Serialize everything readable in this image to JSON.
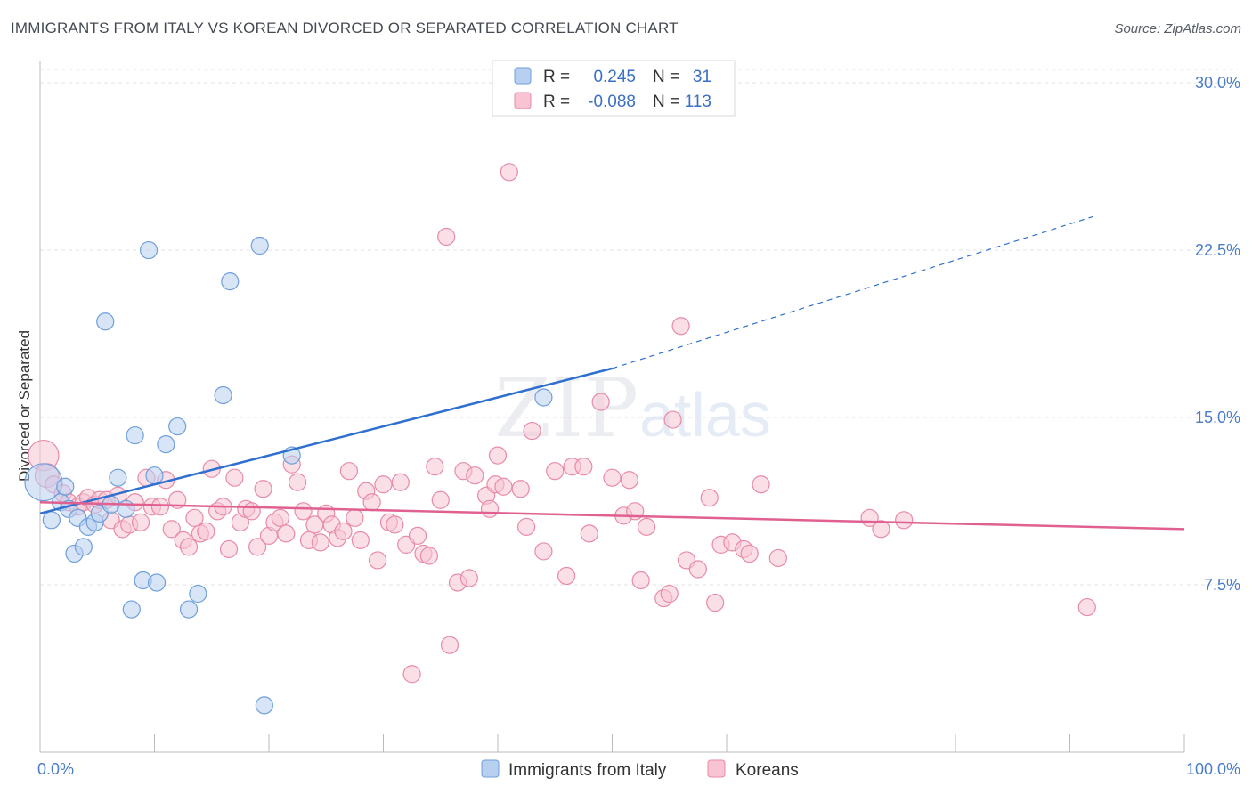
{
  "title": "IMMIGRANTS FROM ITALY VS KOREAN DIVORCED OR SEPARATED CORRELATION CHART",
  "source": "Source: ZipAtlas.com",
  "watermark": {
    "zip": "ZIP",
    "atlas": "atlas"
  },
  "colors": {
    "italy_fill": "#b8d0f0",
    "italy_stroke": "#6e9fdc",
    "italy_line": "#2e6fd0",
    "korean_fill": "#f8c4d4",
    "korean_stroke": "#e88aa8",
    "korean_line": "#e06090",
    "grid": "#e3e3e3",
    "tick_text": "#4a7cc9"
  },
  "legend": {
    "rows": [
      {
        "r_label": "R =",
        "r_value": "0.245",
        "n_label": "N =",
        "n_value": "31"
      },
      {
        "r_label": "R =",
        "r_value": "-0.088",
        "n_label": "N =",
        "n_value": "113"
      }
    ]
  },
  "chart_data": {
    "type": "scatter",
    "title": "IMMIGRANTS FROM ITALY VS KOREAN DIVORCED OR SEPARATED CORRELATION CHART",
    "xlabel": "",
    "ylabel": "Divorced or Separated",
    "xlim": [
      0,
      100
    ],
    "ylim": [
      0,
      31
    ],
    "x_tick_labels": [
      "0.0%",
      "100.0%"
    ],
    "y_ticks": [
      7.5,
      15.0,
      22.5,
      30.0
    ],
    "y_tick_labels": [
      "7.5%",
      "15.0%",
      "22.5%",
      "30.0%"
    ],
    "grid": true,
    "legend_position": "bottom",
    "series": [
      {
        "name": "Immigrants from Italy",
        "R": 0.245,
        "N": 31,
        "trend": {
          "x0": 0,
          "y0": 10.7,
          "x1": 50,
          "y1": 17.2,
          "dashed_to_x": 92,
          "dashed_to_y": 24.0
        },
        "points": [
          [
            0.3,
            12.1,
            2.2
          ],
          [
            1.0,
            10.4,
            1
          ],
          [
            1.8,
            11.2,
            1
          ],
          [
            2.2,
            11.9,
            1
          ],
          [
            2.5,
            10.9,
            1
          ],
          [
            3.0,
            8.9,
            1
          ],
          [
            3.3,
            10.5,
            1
          ],
          [
            3.8,
            9.2,
            1
          ],
          [
            4.2,
            10.1,
            1
          ],
          [
            4.8,
            10.3,
            1
          ],
          [
            5.2,
            10.7,
            1
          ],
          [
            5.7,
            19.3,
            1
          ],
          [
            6.2,
            11.1,
            1
          ],
          [
            6.8,
            12.3,
            1
          ],
          [
            7.5,
            10.9,
            1
          ],
          [
            8.0,
            6.4,
            1
          ],
          [
            8.3,
            14.2,
            1
          ],
          [
            9.0,
            7.7,
            1
          ],
          [
            9.5,
            22.5,
            1
          ],
          [
            10.0,
            12.4,
            1
          ],
          [
            10.2,
            7.6,
            1
          ],
          [
            11.0,
            13.8,
            1
          ],
          [
            12.0,
            14.6,
            1
          ],
          [
            13.0,
            6.4,
            1
          ],
          [
            13.8,
            7.1,
            1
          ],
          [
            16.0,
            16.0,
            1
          ],
          [
            16.6,
            21.1,
            1
          ],
          [
            19.2,
            22.7,
            1
          ],
          [
            19.6,
            2.1,
            1
          ],
          [
            22.0,
            13.3,
            1
          ],
          [
            44.0,
            15.9,
            1
          ]
        ]
      },
      {
        "name": "Koreans",
        "R": -0.088,
        "N": 113,
        "trend": {
          "x0": 0,
          "y0": 11.2,
          "x1": 100,
          "y1": 10.0
        },
        "points": [
          [
            0.3,
            13.3,
            1.8
          ],
          [
            0.6,
            12.4,
            1.4
          ],
          [
            1.2,
            12.0,
            1
          ],
          [
            2.0,
            11.6,
            1
          ],
          [
            2.5,
            11.2,
            1
          ],
          [
            3.3,
            11.0,
            1
          ],
          [
            3.8,
            11.2,
            1
          ],
          [
            4.2,
            11.4,
            1
          ],
          [
            4.8,
            11.1,
            1
          ],
          [
            5.2,
            11.3,
            1
          ],
          [
            5.8,
            11.3,
            1
          ],
          [
            6.2,
            10.4,
            1
          ],
          [
            6.8,
            11.5,
            1
          ],
          [
            7.2,
            10.0,
            1
          ],
          [
            7.8,
            10.2,
            1
          ],
          [
            8.3,
            11.2,
            1
          ],
          [
            8.8,
            10.3,
            1
          ],
          [
            9.3,
            12.3,
            1
          ],
          [
            9.8,
            11.0,
            1
          ],
          [
            10.5,
            11.0,
            1
          ],
          [
            11.0,
            12.2,
            1
          ],
          [
            11.5,
            10.0,
            1
          ],
          [
            12.0,
            11.3,
            1
          ],
          [
            12.5,
            9.5,
            1
          ],
          [
            13.0,
            9.2,
            1
          ],
          [
            13.5,
            10.5,
            1
          ],
          [
            14.0,
            9.8,
            1
          ],
          [
            14.5,
            9.9,
            1
          ],
          [
            15.0,
            12.7,
            1
          ],
          [
            15.5,
            10.8,
            1
          ],
          [
            16.0,
            11.0,
            1
          ],
          [
            16.5,
            9.1,
            1
          ],
          [
            17.0,
            12.3,
            1
          ],
          [
            17.5,
            10.3,
            1
          ],
          [
            18.0,
            10.9,
            1
          ],
          [
            18.5,
            10.8,
            1
          ],
          [
            19.0,
            9.2,
            1
          ],
          [
            19.5,
            11.8,
            1
          ],
          [
            20.0,
            9.7,
            1
          ],
          [
            20.5,
            10.3,
            1
          ],
          [
            21.0,
            10.5,
            1
          ],
          [
            21.5,
            9.8,
            1
          ],
          [
            22.0,
            12.9,
            1
          ],
          [
            22.5,
            12.1,
            1
          ],
          [
            23.0,
            10.8,
            1
          ],
          [
            23.5,
            9.5,
            1
          ],
          [
            24.0,
            10.2,
            1
          ],
          [
            24.5,
            9.4,
            1
          ],
          [
            25.0,
            10.7,
            1
          ],
          [
            25.5,
            10.2,
            1
          ],
          [
            26.0,
            9.6,
            1
          ],
          [
            26.5,
            9.9,
            1
          ],
          [
            27.0,
            12.6,
            1
          ],
          [
            27.5,
            10.5,
            1
          ],
          [
            28.0,
            9.5,
            1
          ],
          [
            28.5,
            11.7,
            1
          ],
          [
            29.0,
            11.2,
            1
          ],
          [
            29.5,
            8.6,
            1
          ],
          [
            30.0,
            12.0,
            1
          ],
          [
            30.5,
            10.3,
            1
          ],
          [
            31.0,
            10.2,
            1
          ],
          [
            31.5,
            12.1,
            1
          ],
          [
            32.0,
            9.3,
            1
          ],
          [
            32.5,
            3.5,
            1
          ],
          [
            33.0,
            9.7,
            1
          ],
          [
            33.5,
            8.9,
            1
          ],
          [
            34.0,
            8.8,
            1
          ],
          [
            34.5,
            12.8,
            1
          ],
          [
            35.0,
            11.3,
            1
          ],
          [
            35.5,
            23.1,
            1
          ],
          [
            35.8,
            4.8,
            1
          ],
          [
            36.5,
            7.6,
            1
          ],
          [
            37.0,
            12.6,
            1
          ],
          [
            37.5,
            7.8,
            1
          ],
          [
            38.0,
            12.4,
            1
          ],
          [
            39.0,
            11.5,
            1
          ],
          [
            39.3,
            10.9,
            1
          ],
          [
            39.8,
            12.0,
            1
          ],
          [
            40.0,
            13.3,
            1
          ],
          [
            40.5,
            11.9,
            1
          ],
          [
            41.0,
            26.0,
            1
          ],
          [
            42.0,
            11.8,
            1
          ],
          [
            42.5,
            10.1,
            1
          ],
          [
            43.0,
            14.4,
            1
          ],
          [
            44.0,
            9.0,
            1
          ],
          [
            45.0,
            12.6,
            1
          ],
          [
            46.0,
            7.9,
            1
          ],
          [
            46.5,
            12.8,
            1
          ],
          [
            47.5,
            12.8,
            1
          ],
          [
            48.0,
            9.8,
            1
          ],
          [
            49.0,
            15.7,
            1
          ],
          [
            50.0,
            12.3,
            1
          ],
          [
            51.0,
            10.6,
            1
          ],
          [
            51.5,
            12.2,
            1
          ],
          [
            52.0,
            10.8,
            1
          ],
          [
            52.5,
            7.7,
            1
          ],
          [
            53.0,
            10.1,
            1
          ],
          [
            54.5,
            6.9,
            1
          ],
          [
            55.0,
            7.1,
            1
          ],
          [
            55.3,
            14.9,
            1
          ],
          [
            56.0,
            19.1,
            1
          ],
          [
            56.5,
            8.6,
            1
          ],
          [
            57.5,
            8.2,
            1
          ],
          [
            58.5,
            11.4,
            1
          ],
          [
            59.0,
            6.7,
            1
          ],
          [
            59.5,
            9.3,
            1
          ],
          [
            60.5,
            9.4,
            1
          ],
          [
            61.5,
            9.1,
            1
          ],
          [
            62.0,
            8.9,
            1
          ],
          [
            63.0,
            12.0,
            1
          ],
          [
            64.5,
            8.7,
            1
          ],
          [
            72.5,
            10.5,
            1
          ],
          [
            73.5,
            10.0,
            1
          ],
          [
            75.5,
            10.4,
            1
          ],
          [
            91.5,
            6.5,
            1
          ]
        ]
      }
    ]
  },
  "bottom_legend": [
    {
      "label": "Immigrants from Italy"
    },
    {
      "label": "Koreans"
    }
  ]
}
